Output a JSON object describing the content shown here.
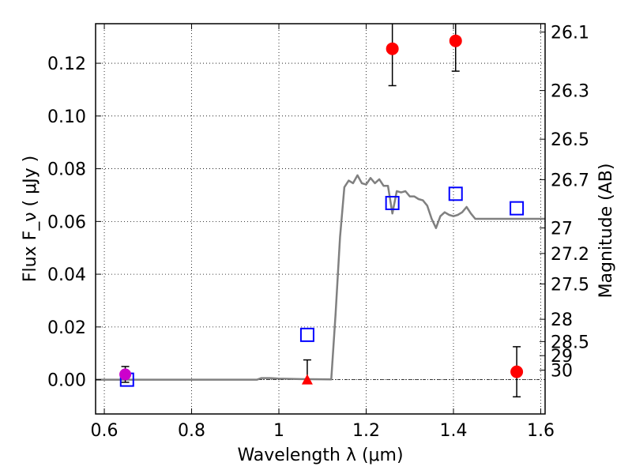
{
  "chart_data": {
    "type": "scatter",
    "xlabel": "Wavelength  λ (μm)",
    "ylabel": "Flux  F_ν  ( μJy )",
    "ylabel_right": "Magnitude (AB)",
    "xlim": [
      0.58,
      1.61
    ],
    "ylim": [
      -0.013,
      0.135
    ],
    "x_ticks": [
      0.6,
      0.8,
      1.0,
      1.2,
      1.4,
      1.6
    ],
    "x_tick_labels": [
      "0.6",
      "0.8",
      "1",
      "1.2",
      "1.4",
      "1.6"
    ],
    "y_ticks": [
      0.0,
      0.02,
      0.04,
      0.06,
      0.08,
      0.1,
      0.12
    ],
    "y_tick_labels": [
      "0.00",
      "0.02",
      "0.04",
      "0.06",
      "0.08",
      "0.10",
      "0.12"
    ],
    "mag_ticks": [
      26.1,
      26.3,
      26.5,
      26.7,
      27,
      27.2,
      27.5,
      28,
      28.5,
      29,
      30
    ],
    "mag_tick_labels": [
      "26.1",
      "26.3",
      "26.5",
      "26.7",
      "27",
      "27.2",
      "27.5",
      "28",
      "28.5",
      "29",
      "30"
    ],
    "grid": true,
    "model_sed": {
      "color": "#808080",
      "x": [
        0.58,
        0.95,
        0.96,
        0.98,
        1.0,
        1.05,
        1.12,
        1.13,
        1.14,
        1.15,
        1.16,
        1.17,
        1.18,
        1.19,
        1.2,
        1.21,
        1.22,
        1.23,
        1.24,
        1.25,
        1.26,
        1.27,
        1.28,
        1.29,
        1.3,
        1.31,
        1.32,
        1.33,
        1.34,
        1.35,
        1.36,
        1.37,
        1.38,
        1.39,
        1.4,
        1.41,
        1.42,
        1.43,
        1.44,
        1.45,
        1.46,
        1.47,
        1.48,
        1.49,
        1.5,
        1.52,
        1.54,
        1.56,
        1.58,
        1.61
      ],
      "y": [
        0.0,
        0.0,
        0.0006,
        0.0006,
        0.0004,
        0.0002,
        0.0001,
        0.025,
        0.054,
        0.073,
        0.0755,
        0.0745,
        0.0775,
        0.0745,
        0.074,
        0.0765,
        0.0745,
        0.076,
        0.0735,
        0.0735,
        0.063,
        0.0715,
        0.071,
        0.0715,
        0.0695,
        0.0695,
        0.0685,
        0.068,
        0.066,
        0.061,
        0.0575,
        0.062,
        0.0635,
        0.0625,
        0.062,
        0.0625,
        0.0635,
        0.0655,
        0.063,
        0.061,
        0.061,
        0.061,
        0.061,
        0.061,
        0.061,
        0.061,
        0.061,
        0.061,
        0.061,
        0.061
      ]
    },
    "points_red_circle": {
      "color": "#ff0000",
      "x": [
        1.26,
        1.405,
        1.545
      ],
      "y": [
        0.1255,
        0.1285,
        0.003
      ],
      "err_low": [
        0.014,
        0.0115,
        0.0095
      ],
      "err_high": [
        0.012,
        0.009,
        0.0095
      ]
    },
    "points_red_triangle": {
      "color": "#ff0000",
      "x": [
        1.065
      ],
      "y": [
        0.0
      ],
      "err_high": [
        0.0075
      ]
    },
    "points_magenta": {
      "color": "#cc00cc",
      "x": [
        0.648
      ],
      "y": [
        0.002
      ],
      "err_low": [
        0.003
      ],
      "err_high": [
        0.003
      ]
    },
    "points_blue_square": {
      "color": "#0000ff",
      "x": [
        0.652,
        1.065,
        1.26,
        1.405,
        1.545
      ],
      "y": [
        0.0,
        0.017,
        0.067,
        0.0705,
        0.065
      ]
    }
  }
}
